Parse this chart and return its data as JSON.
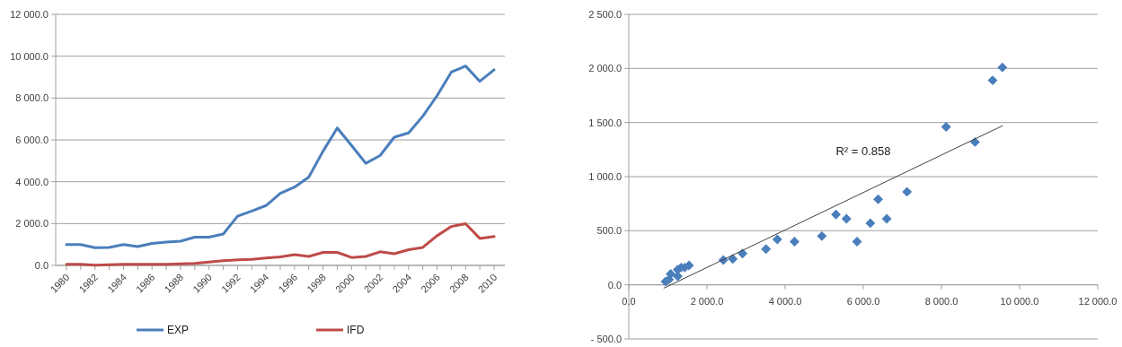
{
  "chart_data": [
    {
      "type": "line",
      "categories": [
        "1980",
        null,
        "1982",
        null,
        "1984",
        null,
        "1986",
        null,
        "1988",
        null,
        "1990",
        null,
        "1992",
        null,
        "1994",
        null,
        "1996",
        null,
        "1998",
        null,
        "2000",
        null,
        "2002",
        null,
        "2004",
        null,
        "2006",
        null,
        "2008",
        null,
        "2010"
      ],
      "series": [
        {
          "name": "EXP",
          "color": "#4a7ebb",
          "values": [
            1000,
            1000,
            850,
            860,
            1000,
            900,
            1050,
            1110,
            1160,
            1350,
            1350,
            1500,
            2350,
            2600,
            2860,
            3440,
            3740,
            4220,
            5460,
            6570,
            5730,
            4880,
            5250,
            6130,
            6330,
            7130,
            8110,
            9240,
            9530,
            8800,
            9350
          ]
        },
        {
          "name": "IFD",
          "color": "#be4b48",
          "values": [
            50,
            50,
            10,
            30,
            50,
            50,
            50,
            50,
            80,
            100,
            160,
            220,
            270,
            290,
            350,
            410,
            510,
            430,
            620,
            620,
            380,
            430,
            650,
            560,
            750,
            860,
            1420,
            1860,
            1990,
            1290,
            1380
          ]
        }
      ],
      "ylim": [
        0,
        12000
      ],
      "yticks": [
        {
          "value": 0,
          "label": "0.0"
        },
        {
          "value": 2000,
          "label": "2 000.0"
        },
        {
          "value": 4000,
          "label": "4 000.0"
        },
        {
          "value": 6000,
          "label": "6 000.0"
        },
        {
          "value": 8000,
          "label": "8 000.0"
        },
        {
          "value": 10000,
          "label": "10 000.0"
        },
        {
          "value": 12000,
          "label": "12 000.0"
        }
      ],
      "grid": "y",
      "legend": "bottom"
    },
    {
      "type": "scatter",
      "series": [
        {
          "marker": "diamond",
          "color": "#4a7ebb",
          "x": [
            940,
            1030,
            1070,
            1250,
            1250,
            1340,
            1430,
            1540,
            2420,
            2660,
            2910,
            3510,
            3800,
            4240,
            4940,
            5300,
            5570,
            5840,
            6180,
            6380,
            6600,
            7120,
            8120,
            8860,
            9310,
            9560
          ],
          "values": [
            30,
            50,
            100,
            140,
            80,
            160,
            160,
            180,
            230,
            240,
            290,
            330,
            420,
            400,
            450,
            650,
            610,
            400,
            570,
            790,
            610,
            860,
            1460,
            1320,
            1890,
            2010
          ]
        },
        {
          "type": "line",
          "color": "#404040",
          "x": [
            900,
            9560
          ],
          "values": [
            -30,
            1470
          ]
        }
      ],
      "xlim": [
        0,
        12000
      ],
      "xticks": [
        {
          "value": 0,
          "label": "0.0"
        },
        {
          "value": 2000,
          "label": "2 000.0"
        },
        {
          "value": 4000,
          "label": "4 000.0"
        },
        {
          "value": 6000,
          "label": "6 000.0"
        },
        {
          "value": 8000,
          "label": "8 000.0"
        },
        {
          "value": 10000,
          "label": "10 000.0"
        },
        {
          "value": 12000,
          "label": "12 000.0"
        }
      ],
      "ylim": [
        -500,
        2500
      ],
      "yticks": [
        {
          "value": -500,
          "label": "- 500.0"
        },
        {
          "value": 0,
          "label": "0.0"
        },
        {
          "value": 500,
          "label": "500.0"
        },
        {
          "value": 1000,
          "label": "1 000.0"
        },
        {
          "value": 1500,
          "label": "1 500.0"
        },
        {
          "value": 2000,
          "label": "2 000.0"
        },
        {
          "value": 2500,
          "label": "2 500.0"
        }
      ],
      "grid": "y",
      "annotations": [
        "R² = 0.858"
      ]
    }
  ]
}
